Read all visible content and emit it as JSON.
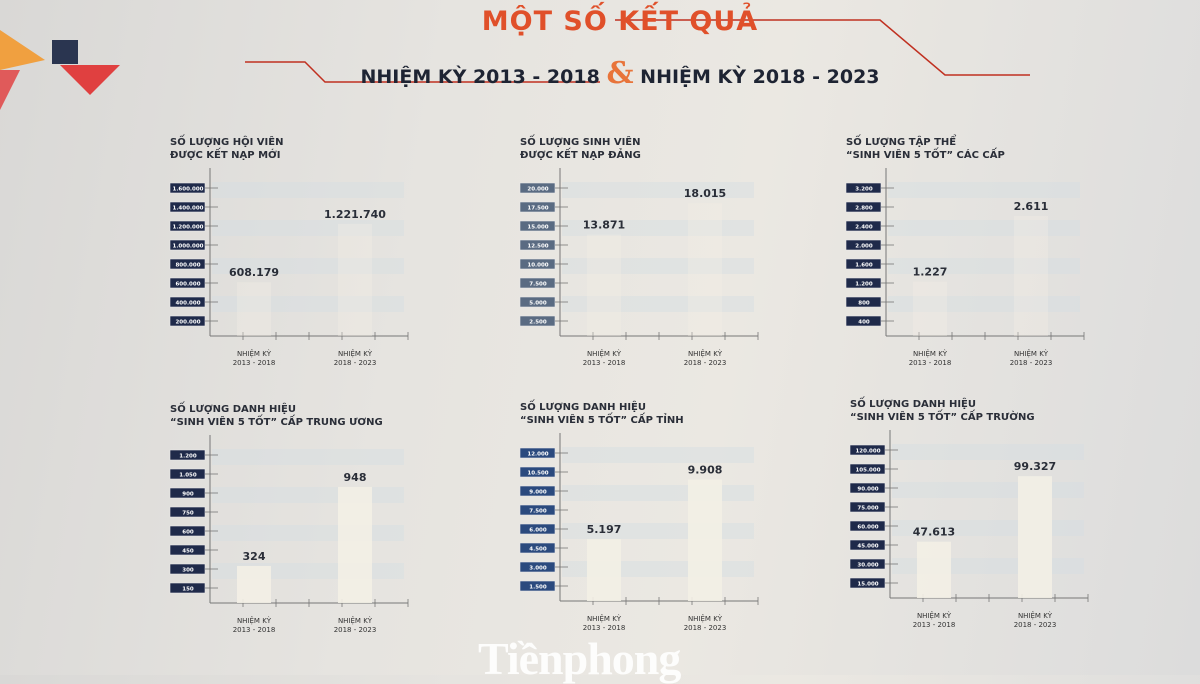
{
  "header": {
    "title": "MỘT SỐ KẾT QUẢ",
    "subtitle_left": "NHIỆM KỲ 2013 - 2018",
    "ampersand": "&",
    "subtitle_right": "NHIỆM KỲ 2018 - 2023"
  },
  "colors": {
    "title": "#e0502a",
    "tick_box": "#1f2a4a",
    "bar": "#f3efe6",
    "grid_band": "#d5dde3"
  },
  "watermark": "Tiềnphong",
  "chart_data": [
    {
      "type": "bar",
      "title_lines": [
        "SỐ LƯỢNG HỘI VIÊN",
        "ĐƯỢC KẾT NẠP MỚI"
      ],
      "categories": [
        [
          "NHIỆM KỲ",
          "2013 - 2018"
        ],
        [
          "NHIỆM KỲ",
          "2018 - 2023"
        ]
      ],
      "values": [
        608179,
        1221740
      ],
      "value_labels": [
        "608.179",
        "1.221.740"
      ],
      "yticks": [
        "200.000",
        "400.000",
        "600.000",
        "800.000",
        "1.000.000",
        "1.200.000",
        "1.400.000",
        "1.600.000"
      ],
      "step": 200000,
      "tick_style": "dark"
    },
    {
      "type": "bar",
      "title_lines": [
        "SỐ LƯỢNG SINH VIÊN",
        "ĐƯỢC KẾT NẠP ĐẢNG"
      ],
      "categories": [
        [
          "NHIỆM KỲ",
          "2013 - 2018"
        ],
        [
          "NHIỆM KỲ",
          "2018 - 2023"
        ]
      ],
      "values": [
        13871,
        18015
      ],
      "value_labels": [
        "13.871",
        "18.015"
      ],
      "yticks": [
        "2.500",
        "5.000",
        "7.500",
        "10.000",
        "12.500",
        "15.000",
        "17.500",
        "20.000"
      ],
      "step": 2500,
      "tick_style": "grey"
    },
    {
      "type": "bar",
      "title_lines": [
        "SỐ LƯỢNG TẬP THỂ",
        "“SINH VIÊN 5 TỐT” CÁC CẤP"
      ],
      "categories": [
        [
          "NHIỆM KỲ",
          "2013 - 2018"
        ],
        [
          "NHIỆM KỲ",
          "2018 - 2023"
        ]
      ],
      "values": [
        1227,
        2611
      ],
      "value_labels": [
        "1.227",
        "2.611"
      ],
      "yticks": [
        "400",
        "800",
        "1.200",
        "1.600",
        "2.000",
        "2.400",
        "2.800",
        "3.200"
      ],
      "step": 400,
      "tick_style": "dark"
    },
    {
      "type": "bar",
      "title_lines": [
        "SỐ LƯỢNG DANH HIỆU",
        "“SINH VIÊN 5 TỐT” CẤP TRUNG ƯƠNG"
      ],
      "categories": [
        [
          "NHIỆM KỲ",
          "2013 - 2018"
        ],
        [
          "NHIỆM KỲ",
          "2018 - 2023"
        ]
      ],
      "values": [
        324,
        948
      ],
      "value_labels": [
        "324",
        "948"
      ],
      "yticks": [
        "150",
        "300",
        "450",
        "600",
        "750",
        "900",
        "1.050",
        "1.200"
      ],
      "step": 150,
      "tick_style": "dark"
    },
    {
      "type": "bar",
      "title_lines": [
        "SỐ LƯỢNG DANH HIỆU",
        "“SINH VIÊN 5 TỐT” CẤP TỈNH"
      ],
      "categories": [
        [
          "NHIỆM KỲ",
          "2013 - 2018"
        ],
        [
          "NHIỆM KỲ",
          "2018 - 2023"
        ]
      ],
      "values": [
        5197,
        9908
      ],
      "value_labels": [
        "5.197",
        "9.908"
      ],
      "yticks": [
        "1.500",
        "3.000",
        "4.500",
        "6.000",
        "7.500",
        "9.000",
        "10.500",
        "12.000"
      ],
      "step": 1500,
      "tick_style": "blue"
    },
    {
      "type": "bar",
      "title_lines": [
        "SỐ LƯỢNG DANH HIỆU",
        "“SINH VIÊN 5 TỐT” CẤP TRƯỜNG"
      ],
      "categories": [
        [
          "NHIỆM KỲ",
          "2013 - 2018"
        ],
        [
          "NHIỆM KỲ",
          "2018 - 2023"
        ]
      ],
      "values": [
        47613,
        99327
      ],
      "value_labels": [
        "47.613",
        "99.327"
      ],
      "yticks": [
        "15.000",
        "30.000",
        "45.000",
        "60.000",
        "75.000",
        "90.000",
        "105.000",
        "120.000"
      ],
      "step": 15000,
      "tick_style": "dark"
    }
  ]
}
